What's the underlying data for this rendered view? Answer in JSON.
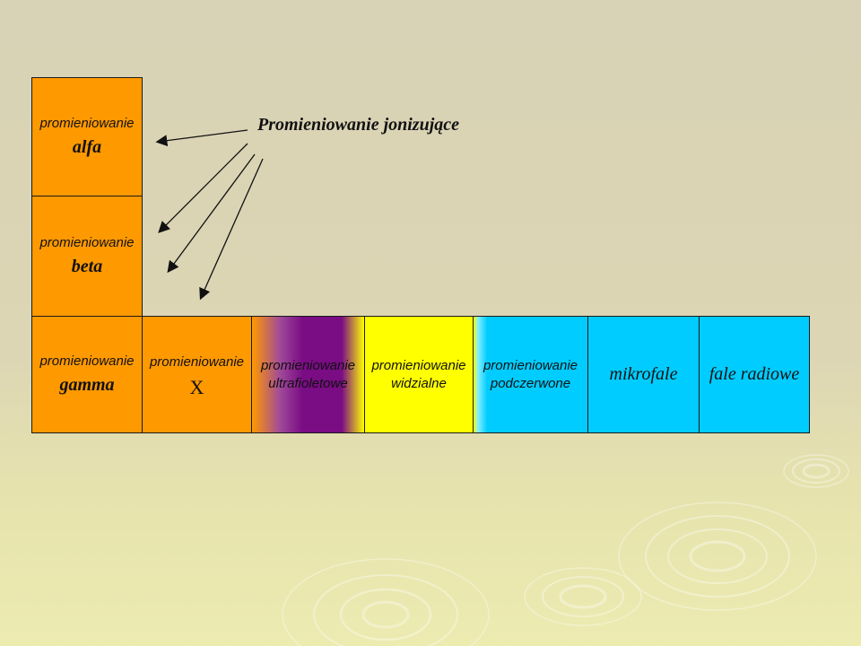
{
  "title": "Promieniowanie jonizujące",
  "cells": {
    "alfa": {
      "line1": "promieniowanie",
      "line2": "alfa"
    },
    "beta": {
      "line1": "promieniowanie",
      "line2": "beta"
    },
    "gamma": {
      "line1": "promieniowanie",
      "line2": "gamma"
    },
    "x": {
      "line1": "promieniowanie",
      "line2": "X"
    },
    "uv": {
      "line1": "promieniowanie",
      "line2": "ultrafioletowe"
    },
    "vis": {
      "line1": "promieniowanie",
      "line2": "widzialne"
    },
    "ir": {
      "line1": "promieniowanie",
      "line2": "podczerwone"
    },
    "micro": {
      "label": "mikrofale"
    },
    "radio": {
      "label": "fale radiowe"
    }
  },
  "colors": {
    "orange": "#ff9900",
    "violet": "#7a0c84",
    "yellow": "#ffff00",
    "cyan": "#00ccff"
  }
}
